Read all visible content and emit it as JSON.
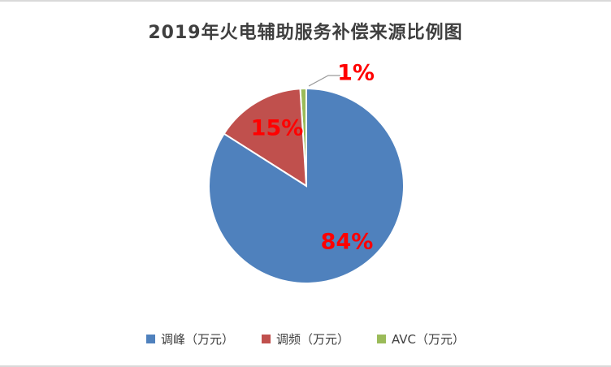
{
  "title": "2019年火电辅助服务补偿来源比例图",
  "chart_data": {
    "type": "pie",
    "title": "2019年火电辅助服务补偿来源比例图",
    "categories": [
      "调峰（万元）",
      "调频（万元）",
      "AVC（万元）"
    ],
    "values": [
      84,
      15,
      1
    ],
    "percent_labels": [
      "84%",
      "15%",
      "1%"
    ],
    "colors": [
      "#4f81bd",
      "#c0504d",
      "#9bbb59"
    ],
    "label_color": "#ff0000",
    "start_angle_deg": -90,
    "direction": "clockwise",
    "legend_position": "bottom"
  },
  "legend": {
    "items": [
      {
        "label": "调峰（万元）",
        "color": "#4f81bd"
      },
      {
        "label": "调频（万元）",
        "color": "#c0504d"
      },
      {
        "label": "AVC（万元）",
        "color": "#9bbb59"
      }
    ]
  }
}
